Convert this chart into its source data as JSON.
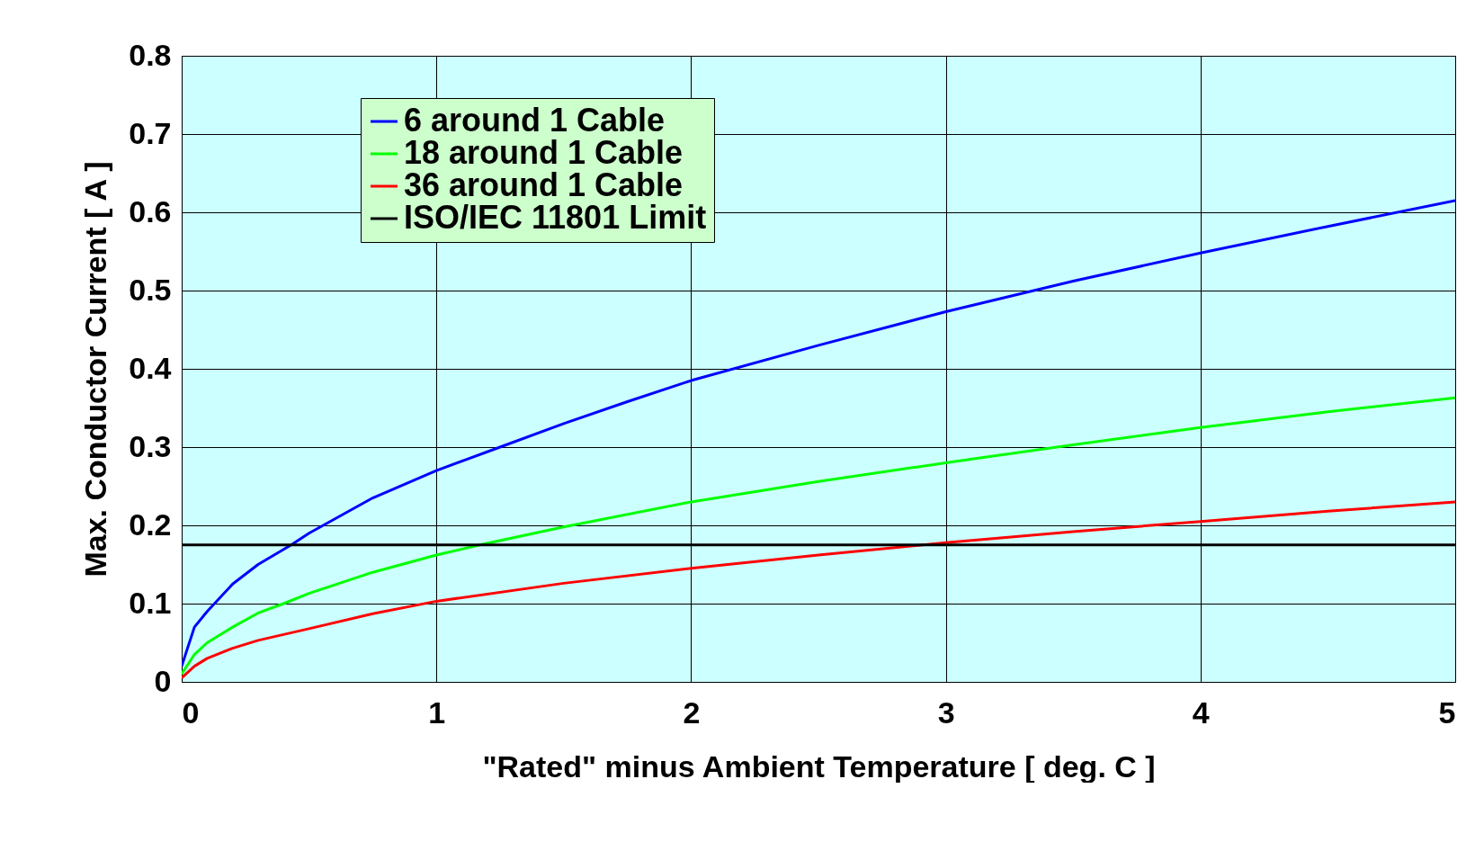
{
  "chart_data": {
    "type": "line",
    "xlabel": "\"Rated\" minus Ambient Temperature   [ deg. C ]",
    "ylabel": "Max. Conductor Current  [ A ]",
    "xlim": [
      0,
      5
    ],
    "xticks": [
      0,
      1,
      2,
      3,
      4,
      5
    ],
    "ylim": [
      0,
      0.8
    ],
    "yticks": [
      0,
      0.1,
      0.2,
      0.3,
      0.4,
      0.5,
      0.6,
      0.7,
      0.8
    ],
    "grid": true,
    "legend": "top left",
    "marker": "none",
    "line_style": "solid",
    "series": [
      {
        "name": "  6 around 1 Cable",
        "color": "#0000ff",
        "x": [
          0,
          0.05,
          0.1,
          0.2,
          0.3,
          0.43,
          0.5,
          0.75,
          1,
          1.25,
          1.5,
          1.75,
          2,
          2.5,
          3,
          3.5,
          4,
          4.5,
          5
        ],
        "values": [
          0.02,
          0.07,
          0.09,
          0.125,
          0.15,
          0.175,
          0.19,
          0.235,
          0.27,
          0.3,
          0.33,
          0.358,
          0.385,
          0.43,
          0.473,
          0.512,
          0.548,
          0.582,
          0.615
        ]
      },
      {
        "name": "18 around 1 Cable",
        "color": "#00ff00",
        "x": [
          0,
          0.05,
          0.1,
          0.2,
          0.3,
          0.4,
          0.5,
          0.75,
          1,
          1.17,
          1.5,
          2,
          2.5,
          3,
          3.5,
          4,
          4.5,
          5
        ],
        "values": [
          0.01,
          0.035,
          0.05,
          0.07,
          0.088,
          0.1,
          0.113,
          0.14,
          0.162,
          0.175,
          0.198,
          0.23,
          0.256,
          0.28,
          0.303,
          0.325,
          0.345,
          0.363
        ]
      },
      {
        "name": "36 around 1 Cable",
        "color": "#ff0000",
        "x": [
          0,
          0.05,
          0.1,
          0.2,
          0.3,
          0.5,
          0.75,
          1,
          1.5,
          2,
          2.5,
          3,
          3.5,
          4,
          4.5,
          5
        ],
        "values": [
          0.005,
          0.02,
          0.03,
          0.043,
          0.053,
          0.068,
          0.087,
          0.103,
          0.126,
          0.145,
          0.162,
          0.178,
          0.192,
          0.205,
          0.218,
          0.23
        ]
      }
    ],
    "ref_lines": [
      {
        "axis": "y",
        "value": 0.175,
        "label": "ISO/IEC 11801 Limit",
        "color": "#000000"
      }
    ]
  }
}
